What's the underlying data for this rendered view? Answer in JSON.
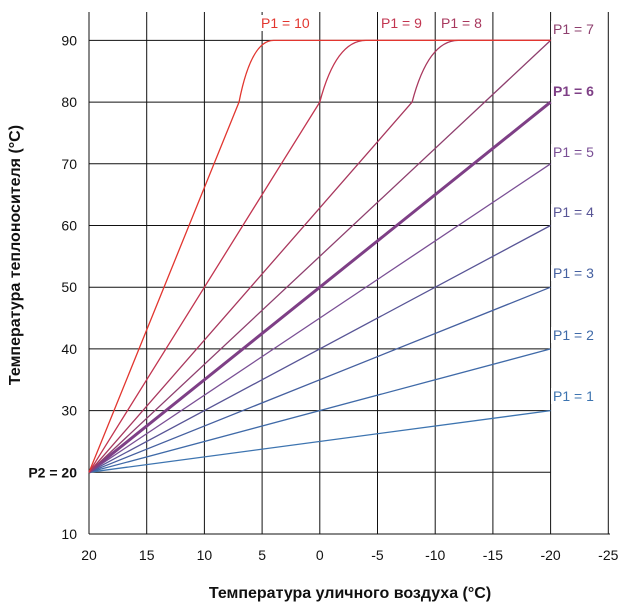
{
  "chart_data": {
    "type": "line",
    "xlabel": "Температура уличного воздуха (°C)",
    "ylabel": "Температура теплоносителя (°C)",
    "x_reversed": true,
    "xlim": [
      20,
      -25
    ],
    "ylim": [
      10,
      95
    ],
    "xticks": [
      20,
      15,
      10,
      5,
      0,
      -5,
      -10,
      -15,
      -20,
      -25
    ],
    "yticks": [
      {
        "value": 10,
        "label": "10"
      },
      {
        "value": 20,
        "label": "P2 = 20",
        "bold": true
      },
      {
        "value": 30,
        "label": "30"
      },
      {
        "value": 40,
        "label": "40"
      },
      {
        "value": 50,
        "label": "50"
      },
      {
        "value": 60,
        "label": "60"
      },
      {
        "value": 70,
        "label": "70"
      },
      {
        "value": 80,
        "label": "80"
      },
      {
        "value": 90,
        "label": "90"
      }
    ],
    "grid": true,
    "max_supply_temp": 90,
    "series": [
      {
        "name": "P1 = 1",
        "color": "#3d74b0",
        "points": [
          [
            20,
            20
          ],
          [
            -20,
            30
          ]
        ]
      },
      {
        "name": "P1 = 2",
        "color": "#3f6aa8",
        "points": [
          [
            20,
            20
          ],
          [
            -20,
            40
          ]
        ]
      },
      {
        "name": "P1 = 3",
        "color": "#4560a0",
        "points": [
          [
            20,
            20
          ],
          [
            -20,
            50
          ]
        ]
      },
      {
        "name": "P1 = 4",
        "color": "#585596",
        "points": [
          [
            20,
            20
          ],
          [
            -20,
            60
          ]
        ]
      },
      {
        "name": "P1 = 5",
        "color": "#7a4f95",
        "points": [
          [
            20,
            20
          ],
          [
            -20,
            70
          ]
        ]
      },
      {
        "name": "P1 = 6",
        "color": "#7e3f86",
        "bold": true,
        "points": [
          [
            20,
            20
          ],
          [
            -20,
            80
          ]
        ]
      },
      {
        "name": "P1 = 7",
        "color": "#8e3f6e",
        "points": [
          [
            20,
            20
          ],
          [
            -20,
            90
          ]
        ]
      },
      {
        "name": "P1 = 8",
        "color": "#a8385e",
        "points": [
          [
            20,
            20
          ],
          [
            -8,
            80
          ],
          [
            -12,
            90
          ],
          [
            -20,
            90
          ]
        ]
      },
      {
        "name": "P1 = 9",
        "color": "#c23550",
        "points": [
          [
            20,
            20
          ],
          [
            0,
            80
          ],
          [
            -4,
            90
          ],
          [
            -20,
            90
          ]
        ]
      },
      {
        "name": "P1 = 10",
        "color": "#e2362f",
        "points": [
          [
            20,
            20
          ],
          [
            7,
            80
          ],
          [
            4,
            90
          ],
          [
            -20,
            90
          ]
        ]
      }
    ]
  }
}
